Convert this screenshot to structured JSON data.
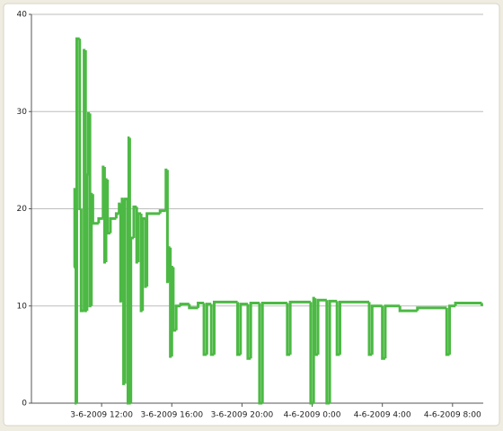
{
  "chart_data": {
    "type": "line",
    "step": "post",
    "color": "#4cb944",
    "grid": true,
    "x": [
      "3-6-2009 10:25",
      "3-6-2009 10:28",
      "3-6-2009 10:32",
      "3-6-2009 10:35",
      "3-6-2009 10:45",
      "3-6-2009 10:50",
      "3-6-2009 11:00",
      "3-6-2009 11:05",
      "3-6-2009 11:10",
      "3-6-2009 11:15",
      "3-6-2009 11:20",
      "3-6-2009 11:25",
      "3-6-2009 11:30",
      "3-6-2009 11:50",
      "3-6-2009 12:05",
      "3-6-2009 12:10",
      "3-6-2009 12:15",
      "3-6-2009 12:20",
      "3-6-2009 12:30",
      "3-6-2009 12:50",
      "3-6-2009 13:00",
      "3-6-2009 13:05",
      "3-6-2009 13:10",
      "3-6-2009 13:15",
      "3-6-2009 13:20",
      "3-6-2009 13:30",
      "3-6-2009 13:33",
      "3-6-2009 13:36",
      "3-6-2009 13:40",
      "3-6-2009 13:50",
      "3-6-2009 14:00",
      "3-6-2009 14:05",
      "3-6-2009 14:15",
      "3-6-2009 14:20",
      "3-6-2009 14:30",
      "3-6-2009 14:35",
      "3-6-2009 15:20",
      "3-6-2009 15:40",
      "3-6-2009 15:45",
      "3-6-2009 15:50",
      "3-6-2009 15:55",
      "3-6-2009 16:00",
      "3-6-2009 16:05",
      "3-6-2009 16:15",
      "3-6-2009 16:30",
      "3-6-2009 17:00",
      "3-6-2009 17:30",
      "3-6-2009 17:50",
      "3-6-2009 18:00",
      "3-6-2009 18:15",
      "3-6-2009 18:25",
      "3-6-2009 19:45",
      "3-6-2009 19:55",
      "3-6-2009 20:20",
      "3-6-2009 20:30",
      "3-6-2009 21:00",
      "3-6-2009 21:10",
      "3-6-2009 22:35",
      "3-6-2009 22:45",
      "3-6-2009 23:55",
      "4-6-2009 0:05",
      "4-6-2009 0:10",
      "4-6-2009 0:20",
      "4-6-2009 0:50",
      "4-6-2009 1:00",
      "4-6-2009 1:25",
      "4-6-2009 1:35",
      "4-6-2009 3:15",
      "4-6-2009 3:25",
      "4-6-2009 4:00",
      "4-6-2009 4:10",
      "4-6-2009 5:00",
      "4-6-2009 6:00",
      "4-6-2009 7:40",
      "4-6-2009 7:50",
      "4-6-2009 8:10",
      "4-6-2009 9:40"
    ],
    "values": [
      14,
      22,
      0,
      37.5,
      20,
      9.5,
      36.3,
      9.5,
      23.5,
      29.8,
      10,
      21.5,
      18.5,
      19,
      24.3,
      14.5,
      23,
      17.5,
      19,
      19.5,
      20.5,
      10.5,
      21,
      2,
      21,
      0,
      27.3,
      0,
      17,
      20.2,
      14.5,
      19.5,
      9.5,
      19,
      12,
      19.5,
      19.8,
      24,
      12.5,
      16,
      4.8,
      14,
      7.5,
      10,
      10.2,
      9.8,
      10.3,
      5,
      10.2,
      5,
      10.4,
      5,
      10.2,
      4.6,
      10.3,
      0,
      10.3,
      5,
      10.4,
      0,
      10.8,
      5,
      10.6,
      0,
      10.5,
      5,
      10.4,
      5,
      10,
      4.6,
      10,
      9.5,
      9.8,
      5,
      10,
      10.3,
      10
    ],
    "xlim": [
      "3-6-2009 8:00",
      "4-6-2009 9:45"
    ],
    "xticks": [
      "3-6-2009 12:00",
      "3-6-2009 16:00",
      "3-6-2009 20:00",
      "4-6-2009 0:00",
      "4-6-2009 4:00",
      "4-6-2009 8:00"
    ],
    "ylim": [
      0,
      40
    ],
    "yticks": [
      0,
      10,
      20,
      30,
      40
    ]
  }
}
